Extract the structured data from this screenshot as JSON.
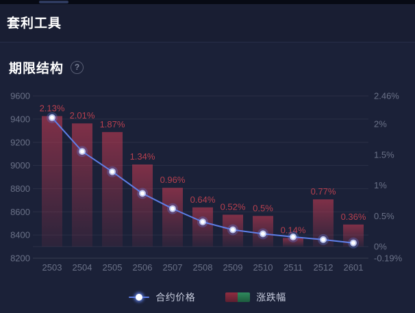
{
  "page": {
    "title": "套利工具"
  },
  "section": {
    "title": "期限结构",
    "help_glyph": "?"
  },
  "chart_data": {
    "type": "bar+line",
    "title": "期限结构",
    "categories": [
      "2503",
      "2504",
      "2505",
      "2506",
      "2507",
      "2508",
      "2509",
      "2510",
      "2511",
      "2512",
      "2601"
    ],
    "series": [
      {
        "name": "合约价格",
        "type": "line",
        "y_axis": "left",
        "values": [
          9412,
          9121,
          8946,
          8759,
          8627,
          8513,
          8445,
          8410,
          8384,
          8360,
          8332
        ]
      },
      {
        "name": "涨跌幅",
        "type": "bar",
        "y_axis": "right",
        "values": [
          2.13,
          2.01,
          1.87,
          1.34,
          0.96,
          0.64,
          0.52,
          0.5,
          0.14,
          0.77,
          0.36
        ],
        "labels": [
          "2.13%",
          "2.01%",
          "1.87%",
          "1.34%",
          "0.96%",
          "0.64%",
          "0.52%",
          "0.5%",
          "0.14%",
          "0.77%",
          "0.36%"
        ]
      }
    ],
    "left_axis": {
      "min": 8200,
      "max": 9600,
      "ticks": [
        "9600",
        "9400",
        "9200",
        "9000",
        "8800",
        "8600",
        "8400",
        "8200"
      ]
    },
    "right_axis": {
      "min": -0.19,
      "max": 2.46,
      "ticks": [
        {
          "label": "2.46%",
          "value": 2.46
        },
        {
          "label": "2%",
          "value": 2.0
        },
        {
          "label": "1.5%",
          "value": 1.5
        },
        {
          "label": "1%",
          "value": 1.0
        },
        {
          "label": "0.5%",
          "value": 0.5
        },
        {
          "label": "0%",
          "value": 0.0
        },
        {
          "label": "-0.19%",
          "value": -0.19
        }
      ]
    },
    "legend": [
      {
        "label": "合约价格",
        "type": "line"
      },
      {
        "label": "涨跌幅",
        "type": "bar"
      }
    ],
    "grid": true,
    "legend_position": "bottom"
  },
  "colors": {
    "background": "#1b2138",
    "header_background": "#191e33",
    "top_strip": "#070a14",
    "top_strip_accent": "#2e3a5e",
    "divider": "#272e49",
    "title_text": "#ffffff",
    "axis_label": "#6b7288",
    "grid_line": "rgba(255,255,255,0.07)",
    "axis_line": "rgba(255,255,255,0.13)",
    "bar_red": "#c23a52",
    "bar_value_label": "#b8404f",
    "line_blue": "#5f7fe8",
    "point_core": "#ffffff",
    "legend_text": "#c6cbdc",
    "legend_green": "#2f8a5d",
    "help_icon": "#7d8398"
  }
}
